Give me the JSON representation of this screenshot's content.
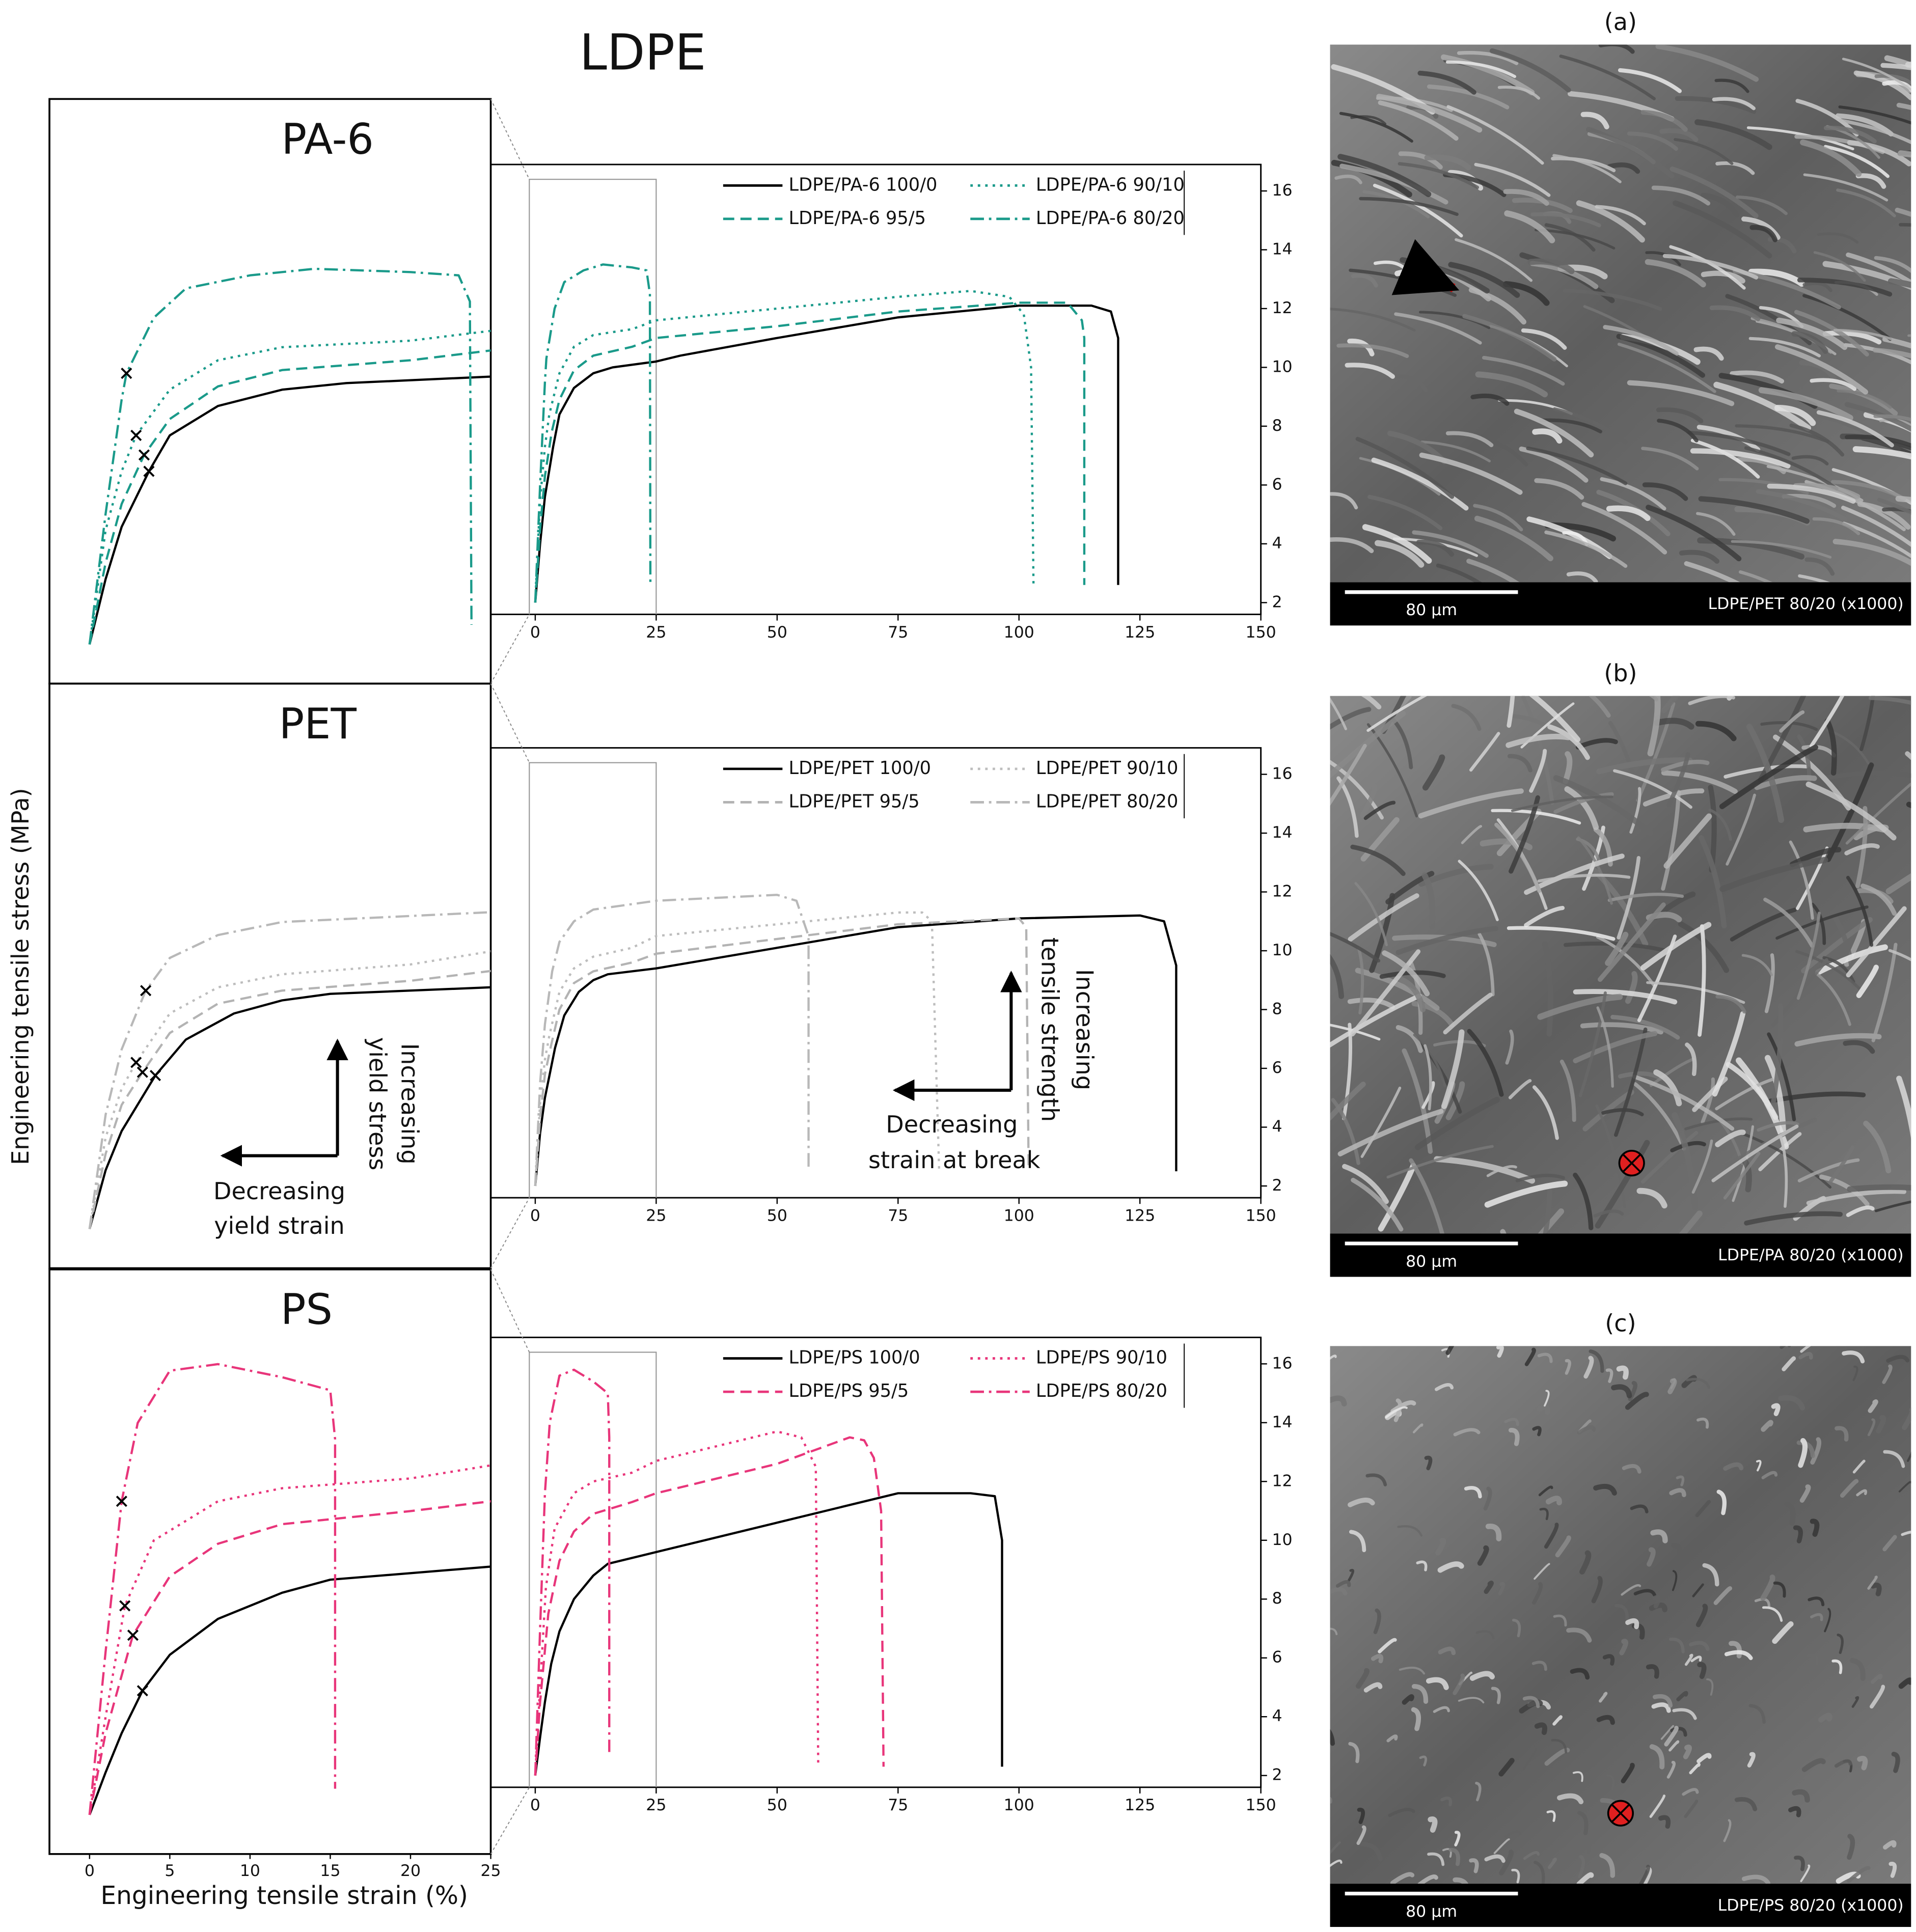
{
  "title": "LDPE",
  "axis_labels": {
    "x": "Engineering tensile strain (%)",
    "y": "Engineering tensile stress (MPa)"
  },
  "chart_data": [
    {
      "type": "line",
      "title": "PA-6",
      "xlim": [
        -9.2,
        150
      ],
      "ylim": [
        1.6,
        16.9
      ],
      "xticks": [
        0,
        25,
        50,
        75,
        100,
        125,
        150
      ],
      "yticks": [
        2,
        4,
        6,
        8,
        10,
        12,
        14,
        16
      ],
      "series": [
        {
          "name": "LDPE/PA-6 100/0",
          "color": "#000000",
          "linestyle": "solid",
          "x": [
            0,
            1,
            2,
            3.7,
            5,
            8,
            12,
            16,
            25,
            30,
            50,
            75,
            100,
            115,
            119,
            120.5,
            120.5
          ],
          "values": [
            2,
            4.0,
            5.6,
            7.3,
            8.4,
            9.3,
            9.8,
            10.0,
            10.2,
            10.4,
            11.0,
            11.7,
            12.1,
            12.1,
            11.9,
            11.0,
            2.6
          ]
        },
        {
          "name": "LDPE/PA-6 95/5",
          "color": "#1a9a8a",
          "linestyle": "dashed",
          "x": [
            0,
            1,
            2,
            3.4,
            5,
            8,
            12,
            20,
            25,
            50,
            75,
            100,
            110,
            113,
            113.5,
            113.5
          ],
          "values": [
            2,
            4.5,
            6.3,
            7.8,
            8.9,
            9.9,
            10.4,
            10.7,
            11.0,
            11.4,
            11.9,
            12.2,
            12.2,
            11.6,
            11.0,
            2.6
          ]
        },
        {
          "name": "LDPE/PA-6 90/10",
          "color": "#1a9a8a",
          "linestyle": "dotted",
          "x": [
            0,
            1,
            2,
            2.9,
            5,
            8,
            12,
            20,
            25,
            50,
            75,
            90,
            98,
            101,
            102.5,
            103
          ],
          "values": [
            2,
            5.5,
            7.3,
            8.4,
            9.8,
            10.7,
            11.1,
            11.3,
            11.6,
            12.0,
            12.4,
            12.6,
            12.4,
            11.8,
            10.0,
            2.6
          ]
        },
        {
          "name": "LDPE/PA-6 80/20",
          "color": "#1a9a8a",
          "linestyle": "dashdot",
          "x": [
            0,
            1,
            2,
            2.3,
            4,
            6,
            10,
            14,
            20,
            23,
            23.7,
            23.8
          ],
          "values": [
            2,
            6.0,
            9.5,
            10.3,
            12.0,
            12.9,
            13.3,
            13.5,
            13.4,
            13.3,
            12.5,
            2.6
          ]
        }
      ],
      "inset": {
        "xlim": [
          -2.5,
          25
        ],
        "ylim": [
          0.8,
          18.7
        ],
        "yield_points": {
          "x": [
            3.7,
            3.4,
            2.9,
            2.3
          ],
          "y": [
            7.3,
            7.8,
            8.4,
            10.3
          ]
        }
      }
    },
    {
      "type": "line",
      "title": "PET",
      "xlim": [
        -9.2,
        150
      ],
      "ylim": [
        1.6,
        16.9
      ],
      "xticks": [
        0,
        25,
        50,
        75,
        100,
        125,
        150
      ],
      "yticks": [
        2,
        4,
        6,
        8,
        10,
        12,
        14,
        16
      ],
      "series": [
        {
          "name": "LDPE/PET 100/0",
          "color": "#000000",
          "linestyle": "solid",
          "x": [
            0,
            1,
            2,
            4.1,
            6,
            9,
            12,
            15,
            25,
            50,
            75,
            100,
            125,
            130,
            132.5,
            132.5
          ],
          "values": [
            2,
            3.8,
            5.0,
            6.7,
            7.8,
            8.6,
            9.0,
            9.2,
            9.4,
            10.1,
            10.8,
            11.1,
            11.2,
            11.0,
            9.5,
            2.5
          ]
        },
        {
          "name": "LDPE/PET 95/5",
          "color": "#b3b3b3",
          "linestyle": "dashed",
          "x": [
            0,
            1,
            2,
            3.3,
            5,
            8,
            12,
            20,
            25,
            50,
            75,
            100,
            101.5,
            102
          ],
          "values": [
            2,
            4.3,
            5.8,
            6.8,
            8.0,
            8.9,
            9.3,
            9.6,
            9.9,
            10.4,
            10.9,
            11.1,
            10.8,
            2.5
          ]
        },
        {
          "name": "LDPE/PET 90/10",
          "color": "#bdbdbd",
          "linestyle": "dotted",
          "x": [
            0,
            1,
            2,
            2.9,
            5,
            8,
            12,
            20,
            25,
            50,
            75,
            80,
            82,
            83.5
          ],
          "values": [
            2,
            4.8,
            6.3,
            7.1,
            8.6,
            9.4,
            9.8,
            10.1,
            10.5,
            10.9,
            11.3,
            11.3,
            11.0,
            2.5
          ]
        },
        {
          "name": "LDPE/PET 80/20",
          "color": "#b8b8b8",
          "linestyle": "dashdot",
          "x": [
            0,
            1,
            2,
            3.5,
            5,
            8,
            12,
            25,
            50,
            54,
            56.5,
            56.5
          ],
          "values": [
            2,
            5.5,
            7.5,
            9.3,
            10.3,
            11.0,
            11.4,
            11.7,
            11.9,
            11.7,
            10.5,
            2.5
          ]
        }
      ],
      "inset": {
        "xlim": [
          -2.5,
          25
        ],
        "ylim": [
          0.8,
          18.7
        ],
        "yield_points": {
          "x": [
            4.1,
            3.3,
            2.9,
            3.5
          ],
          "y": [
            6.7,
            6.8,
            7.1,
            9.3
          ]
        }
      },
      "annotations": {
        "inset": [
          "Increasing",
          "yield stress",
          "Decreasing",
          "yield strain"
        ],
        "main": [
          "Increasing",
          "tensile strength",
          "Decreasing",
          "strain at break"
        ]
      }
    },
    {
      "type": "line",
      "title": "PS",
      "xlim": [
        -9.2,
        150
      ],
      "ylim": [
        1.6,
        16.9
      ],
      "xticks": [
        0,
        25,
        50,
        75,
        100,
        125,
        150
      ],
      "yticks": [
        2,
        4,
        6,
        8,
        10,
        12,
        14,
        16
      ],
      "series": [
        {
          "name": "LDPE/PS 100/0",
          "color": "#000000",
          "linestyle": "solid",
          "x": [
            0,
            1,
            2,
            3.3,
            5,
            8,
            12,
            15,
            25,
            50,
            75,
            90,
            95,
            96.5,
            96.5
          ],
          "values": [
            2,
            3.3,
            4.5,
            5.8,
            6.9,
            8.0,
            8.8,
            9.2,
            9.6,
            10.6,
            11.6,
            11.6,
            11.5,
            10.0,
            2.3
          ]
        },
        {
          "name": "LDPE/PS 95/5",
          "color": "#e8357a",
          "linestyle": "dashed",
          "x": [
            0,
            1,
            2.7,
            5,
            8,
            12,
            20,
            25,
            50,
            65,
            68,
            70,
            71.5,
            72
          ],
          "values": [
            2,
            4.5,
            7.5,
            9.3,
            10.3,
            10.9,
            11.3,
            11.6,
            12.6,
            13.5,
            13.4,
            12.8,
            11.0,
            2.3
          ]
        },
        {
          "name": "LDPE/PS 90/10",
          "color": "#e8357a",
          "linestyle": "dotted",
          "x": [
            0,
            1,
            2.2,
            4,
            8,
            12,
            20,
            25,
            50,
            55,
            58,
            58.5
          ],
          "values": [
            2,
            5.0,
            8.4,
            10.4,
            11.6,
            12.0,
            12.3,
            12.7,
            13.7,
            13.5,
            12.5,
            2.3
          ]
        },
        {
          "name": "LDPE/PS 80/20",
          "color": "#e8357a",
          "linestyle": "dashdot",
          "x": [
            0,
            1,
            2,
            3,
            5,
            8,
            12,
            15,
            15.3,
            15.3
          ],
          "values": [
            2,
            7.0,
            11.6,
            14.0,
            15.6,
            15.8,
            15.4,
            15.0,
            13.5,
            2.8
          ]
        }
      ],
      "inset": {
        "xlim": [
          -2.5,
          25
        ],
        "ylim": [
          0.8,
          18.7
        ],
        "xticks": [
          0,
          5,
          10,
          15,
          20,
          25
        ],
        "yield_points": {
          "x": [
            3.3,
            2.7,
            2.2,
            2.0
          ],
          "y": [
            5.8,
            7.5,
            8.4,
            11.6
          ]
        }
      }
    }
  ],
  "micrographs": [
    {
      "label": "(a)",
      "scale_bar": "80 μm",
      "caption": "LDPE/PET 80/20 (x1000)"
    },
    {
      "label": "(b)",
      "scale_bar": "80 μm",
      "caption": "LDPE/PA 80/20 (x1000)"
    },
    {
      "label": "(c)",
      "scale_bar": "80 μm",
      "caption": "LDPE/PS 80/20 (x1000)"
    }
  ]
}
